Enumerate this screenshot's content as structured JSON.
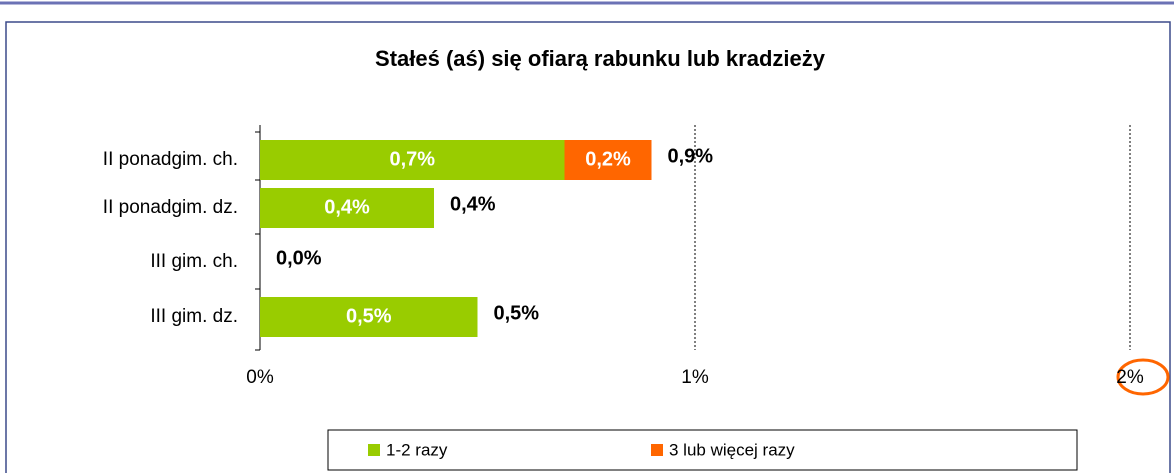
{
  "chart_data": {
    "type": "stacked_barh",
    "title": "Stałeś (aś) się ofiarą rabunku lub kradzieży",
    "categories": [
      "II ponadgim. ch.",
      "II ponadgim. dz.",
      "III gim. ch.",
      "III gim. dz."
    ],
    "series": [
      {
        "name": "1-2 razy",
        "color": "#99cc00",
        "values": [
          0.7,
          0.4,
          0.0,
          0.5
        ],
        "value_labels": [
          "0,7%",
          "0,4%",
          null,
          "0,5%"
        ]
      },
      {
        "name": "3 lub więcej razy",
        "color": "#ff6600",
        "values": [
          0.2,
          0,
          0,
          0
        ],
        "value_labels": [
          "0,2%",
          null,
          null,
          null
        ]
      }
    ],
    "totals": [
      0.9,
      0.4,
      0.0,
      0.5
    ],
    "total_labels": [
      "0,9%",
      "0,4%",
      "0,0%",
      "0,5%"
    ],
    "xlim": [
      0,
      2
    ],
    "xticks": [
      {
        "value": 0,
        "label": "0%"
      },
      {
        "value": 1,
        "label": "1%"
      },
      {
        "value": 2,
        "label": "2%"
      }
    ],
    "grid": true,
    "legend": "bottom"
  }
}
